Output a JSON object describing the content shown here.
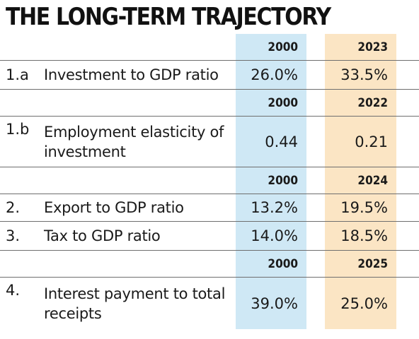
{
  "title": "THE LONG-TERM TRAJECTORY",
  "headers": [
    {
      "a": "2000",
      "b": "2023"
    },
    {
      "a": "2000",
      "b": "2022"
    },
    {
      "a": "2000",
      "b": "2024"
    },
    {
      "a": "2000",
      "b": "2025"
    }
  ],
  "rows": [
    {
      "num": "1.a",
      "label": "Investment to GDP ratio",
      "a": "26.0%",
      "b": "33.5%"
    },
    {
      "num": "1.b",
      "label": "Employment elasticity of investment",
      "a": "0.44",
      "b": "0.21"
    },
    {
      "num": "2.",
      "label": "Export to GDP ratio",
      "a": "13.2%",
      "b": "19.5%"
    },
    {
      "num": "3.",
      "label": "Tax to GDP ratio",
      "a": "14.0%",
      "b": "18.5%"
    },
    {
      "num": "4.",
      "label": "Interest payment to total receipts",
      "a": "39.0%",
      "b": "25.0%"
    }
  ],
  "colors": {
    "col_2000": "#cfe8f5",
    "col_latest": "#fbe5c4"
  }
}
